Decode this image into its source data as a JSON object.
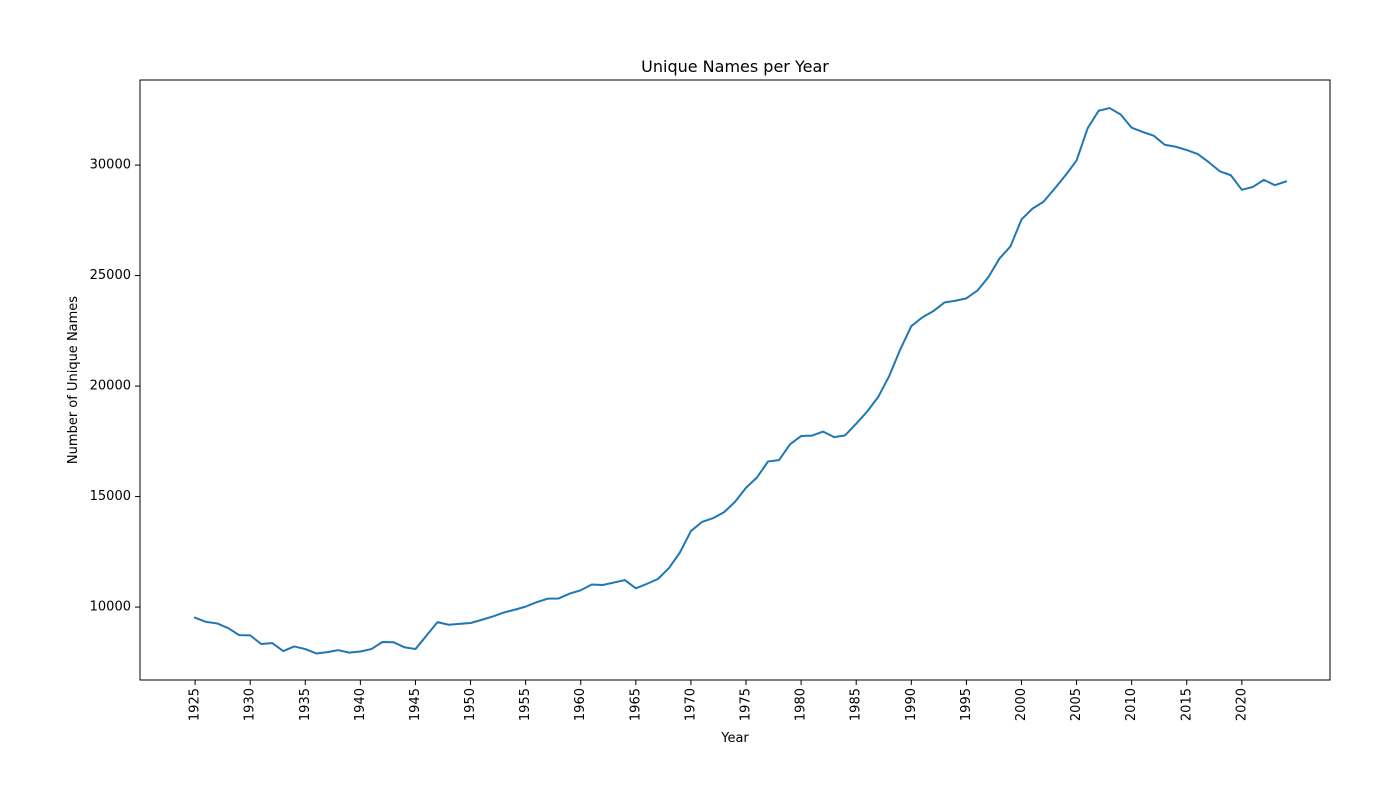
{
  "chart_data": {
    "type": "line",
    "title": "Unique Names per Year",
    "xlabel": "Year",
    "ylabel": "Number of Unique Names",
    "grid": false,
    "legend": "none",
    "xlim": [
      1920,
      2028
    ],
    "ylim": [
      6700,
      33850
    ],
    "x_ticks": [
      1925,
      1930,
      1935,
      1940,
      1945,
      1950,
      1955,
      1960,
      1965,
      1970,
      1975,
      1980,
      1985,
      1990,
      1995,
      2000,
      2005,
      2010,
      2015,
      2020
    ],
    "y_ticks": [
      10000,
      15000,
      20000,
      25000,
      30000
    ],
    "series": [
      {
        "color": "#1f77b4",
        "x": [
          1925,
          1926,
          1927,
          1928,
          1929,
          1930,
          1931,
          1932,
          1933,
          1934,
          1935,
          1936,
          1937,
          1938,
          1939,
          1940,
          1941,
          1942,
          1943,
          1944,
          1945,
          1946,
          1947,
          1948,
          1949,
          1950,
          1951,
          1952,
          1953,
          1954,
          1955,
          1956,
          1957,
          1958,
          1959,
          1960,
          1961,
          1962,
          1963,
          1964,
          1965,
          1966,
          1967,
          1968,
          1969,
          1970,
          1971,
          1972,
          1973,
          1974,
          1975,
          1976,
          1977,
          1978,
          1979,
          1980,
          1981,
          1982,
          1983,
          1984,
          1985,
          1986,
          1987,
          1988,
          1989,
          1990,
          1991,
          1992,
          1993,
          1994,
          1995,
          1996,
          1997,
          1998,
          1999,
          2000,
          2001,
          2002,
          2003,
          2004,
          2005,
          2006,
          2007,
          2008,
          2009,
          2010,
          2011,
          2012,
          2013,
          2014,
          2015,
          2016,
          2017,
          2018,
          2019,
          2020,
          2021,
          2022,
          2023,
          2024
        ],
        "y": [
          9520,
          9330,
          9260,
          9050,
          8730,
          8720,
          8330,
          8370,
          8010,
          8220,
          8100,
          7900,
          7960,
          8050,
          7940,
          7990,
          8100,
          8420,
          8410,
          8180,
          8100,
          8710,
          9320,
          9200,
          9240,
          9280,
          9420,
          9570,
          9750,
          9880,
          10020,
          10220,
          10380,
          10390,
          10610,
          10760,
          11020,
          11000,
          11110,
          11220,
          10850,
          11050,
          11270,
          11760,
          12470,
          13440,
          13850,
          14020,
          14290,
          14760,
          15400,
          15870,
          16590,
          16650,
          17370,
          17740,
          17760,
          17940,
          17690,
          17770,
          18300,
          18850,
          19510,
          20460,
          21660,
          22710,
          23110,
          23390,
          23780,
          23860,
          23970,
          24320,
          24930,
          25770,
          26320,
          27540,
          28030,
          28340,
          28930,
          29540,
          30210,
          31660,
          32460,
          32580,
          32290,
          31690,
          31500,
          31330,
          30920,
          30830,
          30680,
          30500,
          30130,
          29720,
          29540,
          28880,
          29010,
          29330,
          29090,
          29260
        ]
      }
    ]
  }
}
